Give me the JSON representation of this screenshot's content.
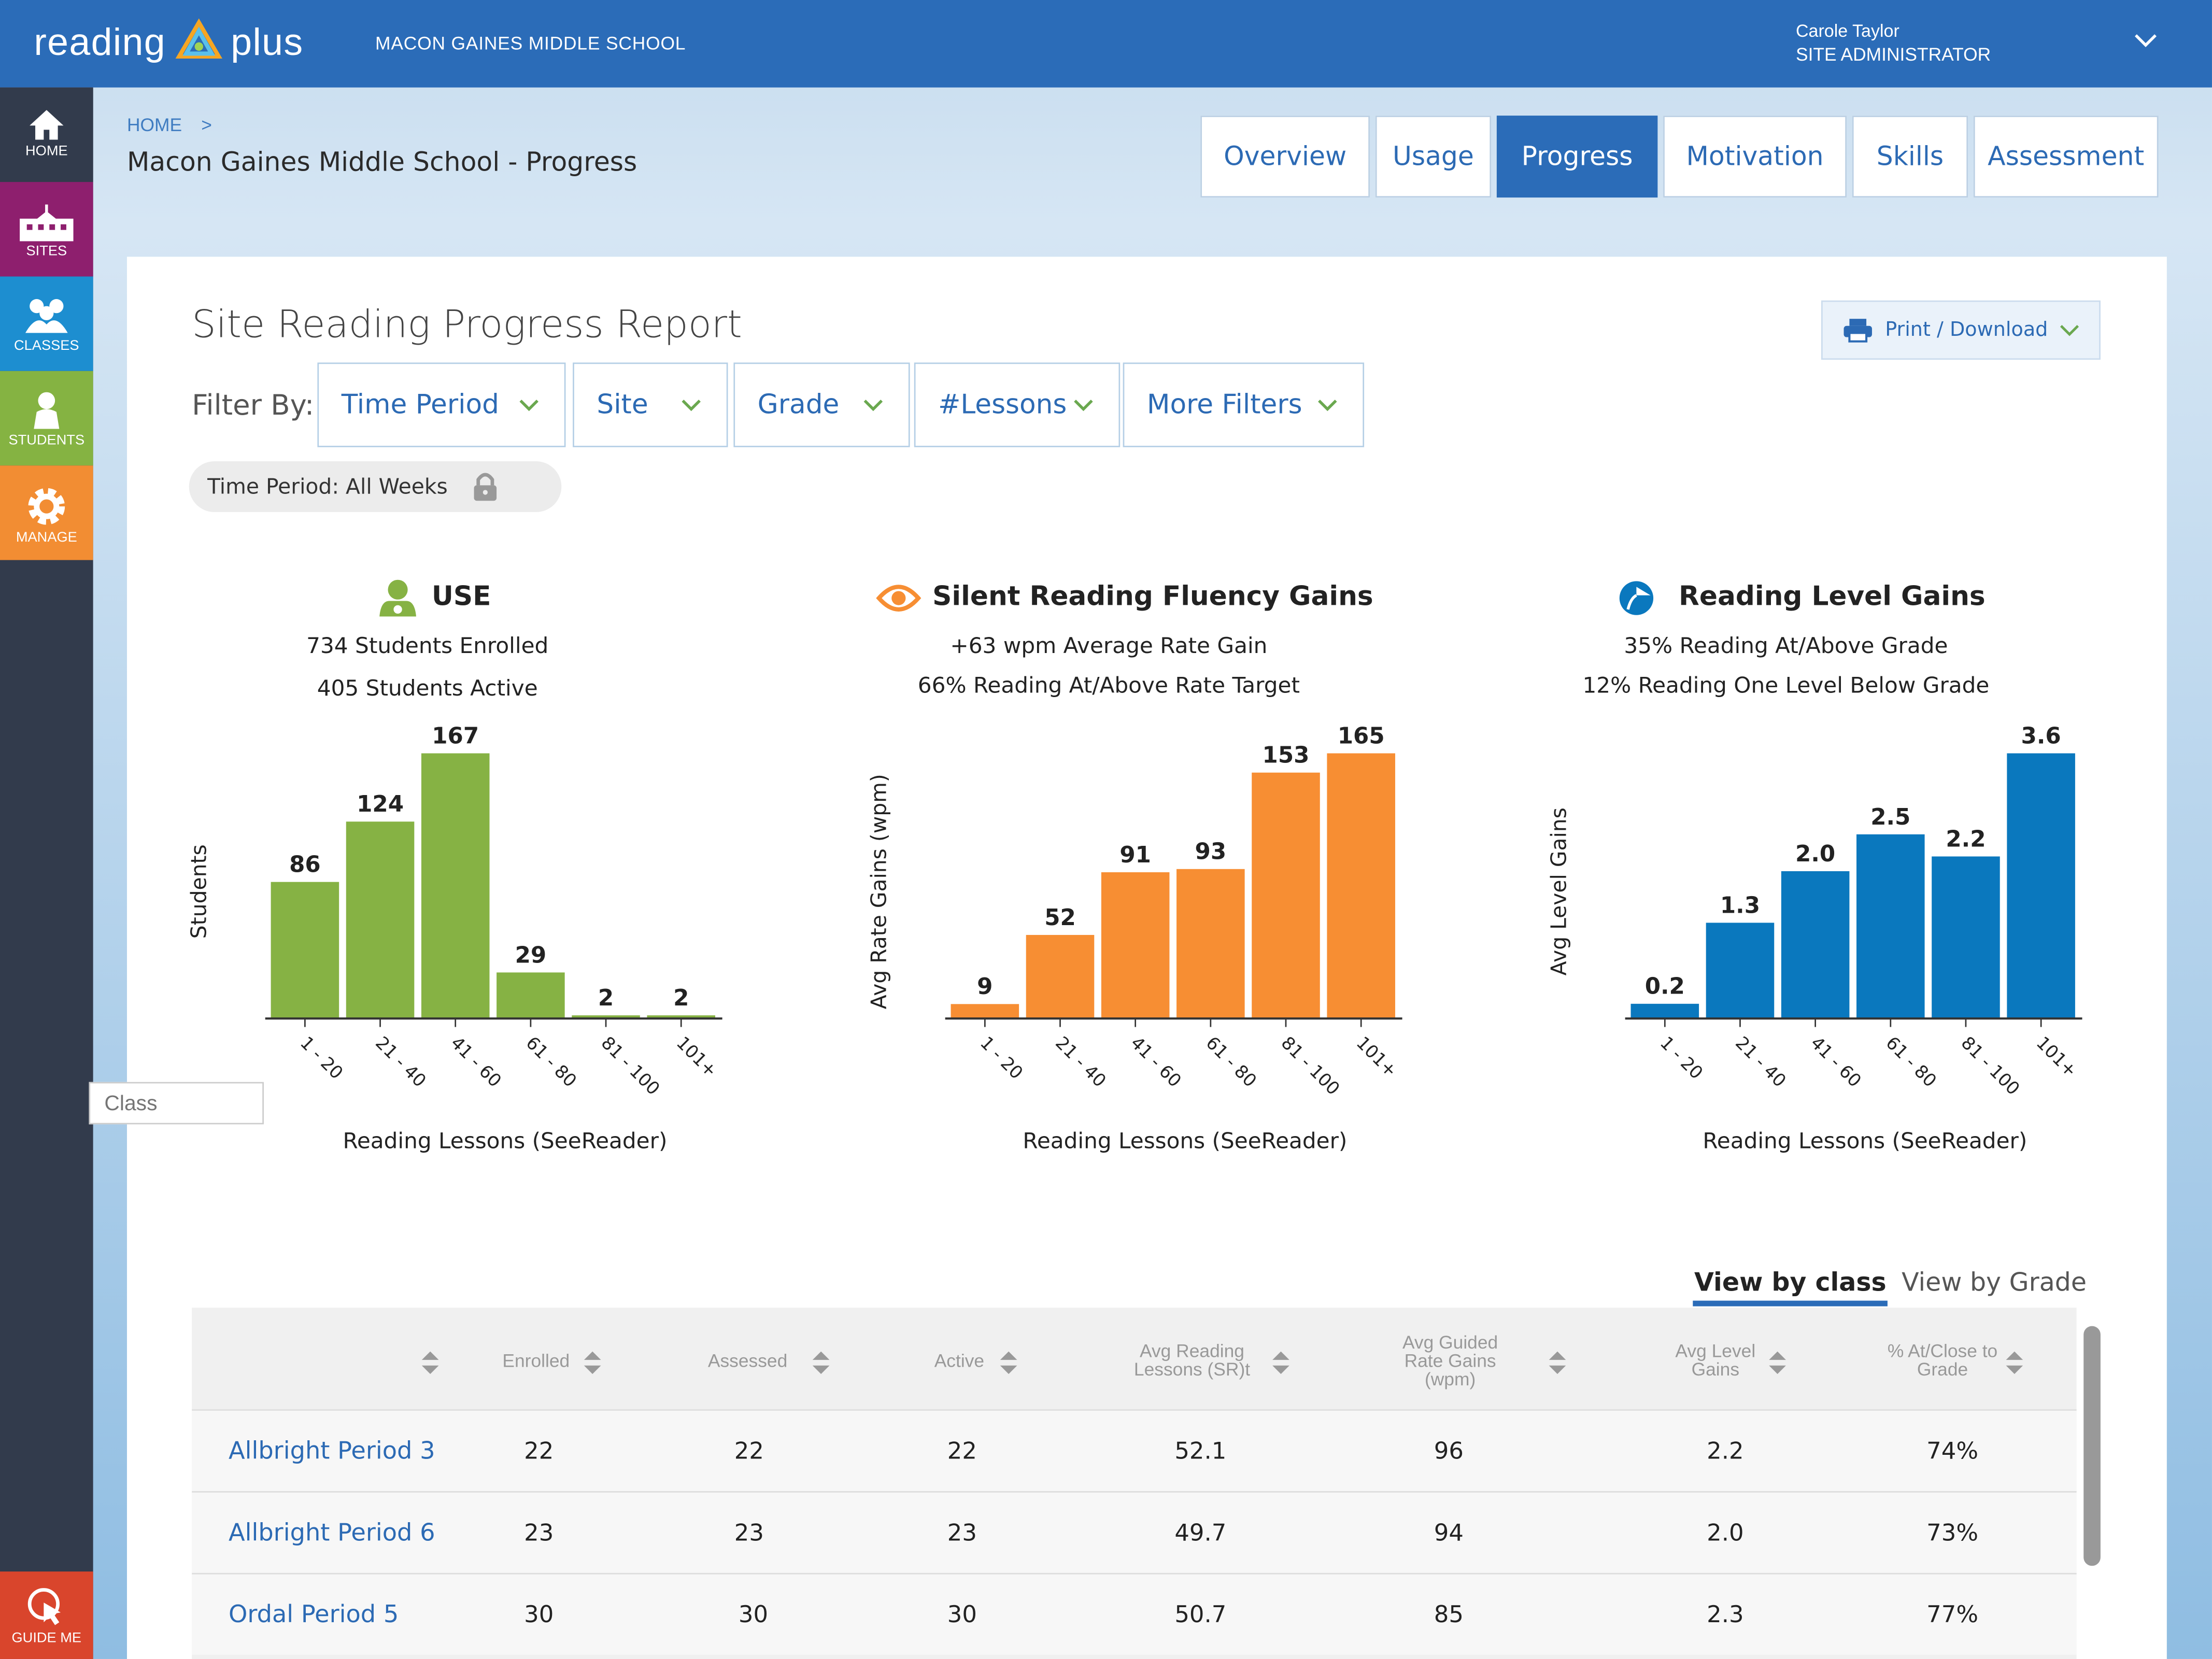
{
  "header": {
    "logo_left": "reading",
    "logo_right": "plus",
    "school_name": "MACON GAINES MIDDLE SCHOOL",
    "user_name": "Carole Taylor",
    "user_role": "SITE ADMINISTRATOR"
  },
  "sidebar": {
    "items": [
      {
        "label": "HOME",
        "icon": "home-icon",
        "color": "#323b4c"
      },
      {
        "label": "SITES",
        "icon": "school-icon",
        "color": "#8e1f6e"
      },
      {
        "label": "CLASSES",
        "icon": "group-icon",
        "color": "#1d8ed0"
      },
      {
        "label": "STUDENTS",
        "icon": "person-icon",
        "color": "#85b342"
      },
      {
        "label": "MANAGE",
        "icon": "gear-icon",
        "color": "#f28d33"
      }
    ],
    "guide": {
      "label": "GUIDE ME",
      "icon": "cursor-icon",
      "color": "#d9452c"
    }
  },
  "breadcrumb": {
    "home": "HOME",
    "sep": ">"
  },
  "page_title": "Macon Gaines Middle School - Progress",
  "tabs": [
    {
      "label": "Overview",
      "active": false
    },
    {
      "label": "Usage",
      "active": false
    },
    {
      "label": "Progress",
      "active": true
    },
    {
      "label": "Motivation",
      "active": false
    },
    {
      "label": "Skills",
      "active": false
    },
    {
      "label": "Assessment",
      "active": false
    }
  ],
  "report": {
    "title": "Site Reading Progress Report",
    "print_label": "Print / Download",
    "filter_label": "Filter By:",
    "filters": [
      "Time Period",
      "Site",
      "Grade",
      "#Lessons",
      "More Filters"
    ],
    "active_filter": "Time Period: All Weeks"
  },
  "charts": [
    {
      "heading": "USE",
      "icon": "students-icon",
      "lines": [
        "734 Students Enrolled",
        "405 Students Active"
      ]
    },
    {
      "heading": "Silent Reading Fluency Gains",
      "icon": "eye-icon",
      "lines": [
        "+63 wpm Average Rate Gain",
        "66% Reading At/Above Rate Target"
      ]
    },
    {
      "heading": "Reading Level Gains",
      "icon": "reader-head-icon",
      "lines": [
        "35% Reading At/Above Grade",
        "12% Reading One Level Below Grade"
      ]
    }
  ],
  "chart_data": [
    {
      "type": "bar",
      "categories": [
        "1 - 20",
        "21 - 40",
        "41 - 60",
        "61 - 80",
        "81 - 100",
        "101+"
      ],
      "values": [
        86,
        124,
        167,
        29,
        2,
        2
      ],
      "labels": [
        "86",
        "124",
        "167",
        "29",
        "2",
        "2"
      ],
      "ylim": [
        0,
        167
      ],
      "xlabel": "Reading Lessons (SeeReader)",
      "ylabel": "Students",
      "color": "#86b244"
    },
    {
      "type": "bar",
      "categories": [
        "1 - 20",
        "21 - 40",
        "41 - 60",
        "61 - 80",
        "81 - 100",
        "101+"
      ],
      "values": [
        9,
        52,
        91,
        93,
        153,
        165
      ],
      "labels": [
        "9",
        "52",
        "91",
        "93",
        "153",
        "165"
      ],
      "ylim": [
        0,
        165
      ],
      "xlabel": "Reading Lessons (SeeReader)",
      "ylabel": "Avg Rate Gains (wpm)",
      "color": "#f78e33"
    },
    {
      "type": "bar",
      "categories": [
        "1 - 20",
        "21 - 40",
        "41 - 60",
        "61 - 80",
        "81 - 100",
        "101+"
      ],
      "values": [
        0.2,
        1.3,
        2.0,
        2.5,
        2.2,
        3.6
      ],
      "labels": [
        "0.2",
        "1.3",
        "2.0",
        "2.5",
        "2.2",
        "3.6"
      ],
      "ylim": [
        0,
        3.6
      ],
      "xlabel": "Reading Lessons (SeeReader)",
      "ylabel": "Avg Level Gains",
      "color": "#0a78be"
    }
  ],
  "table": {
    "view_tabs": [
      "View by class",
      "View by Grade"
    ],
    "class_placeholder": "Class",
    "headers": [
      "Enrolled",
      "Assessed",
      "Active",
      "Avg Reading Lessons (SR)t",
      "Avg Guided Rate Gains (wpm)",
      "Avg Level Gains",
      "% At/Close to Grade"
    ],
    "rows": [
      {
        "cls": "Allbright Period 3",
        "enrolled": "22",
        "assessed": "22",
        "active": "22",
        "lessons": "52.1",
        "rate": "96",
        "level": "2.2",
        "pct": "74%"
      },
      {
        "cls": "Allbright Period 6",
        "enrolled": "23",
        "assessed": "23",
        "active": "23",
        "lessons": "49.7",
        "rate": "94",
        "level": "2.0",
        "pct": "73%"
      },
      {
        "cls": "Ordal Period 5",
        "enrolled": "30",
        "assessed": "30",
        "active": "30",
        "lessons": "50.7",
        "rate": "85",
        "level": "2.3",
        "pct": "77%"
      }
    ]
  }
}
